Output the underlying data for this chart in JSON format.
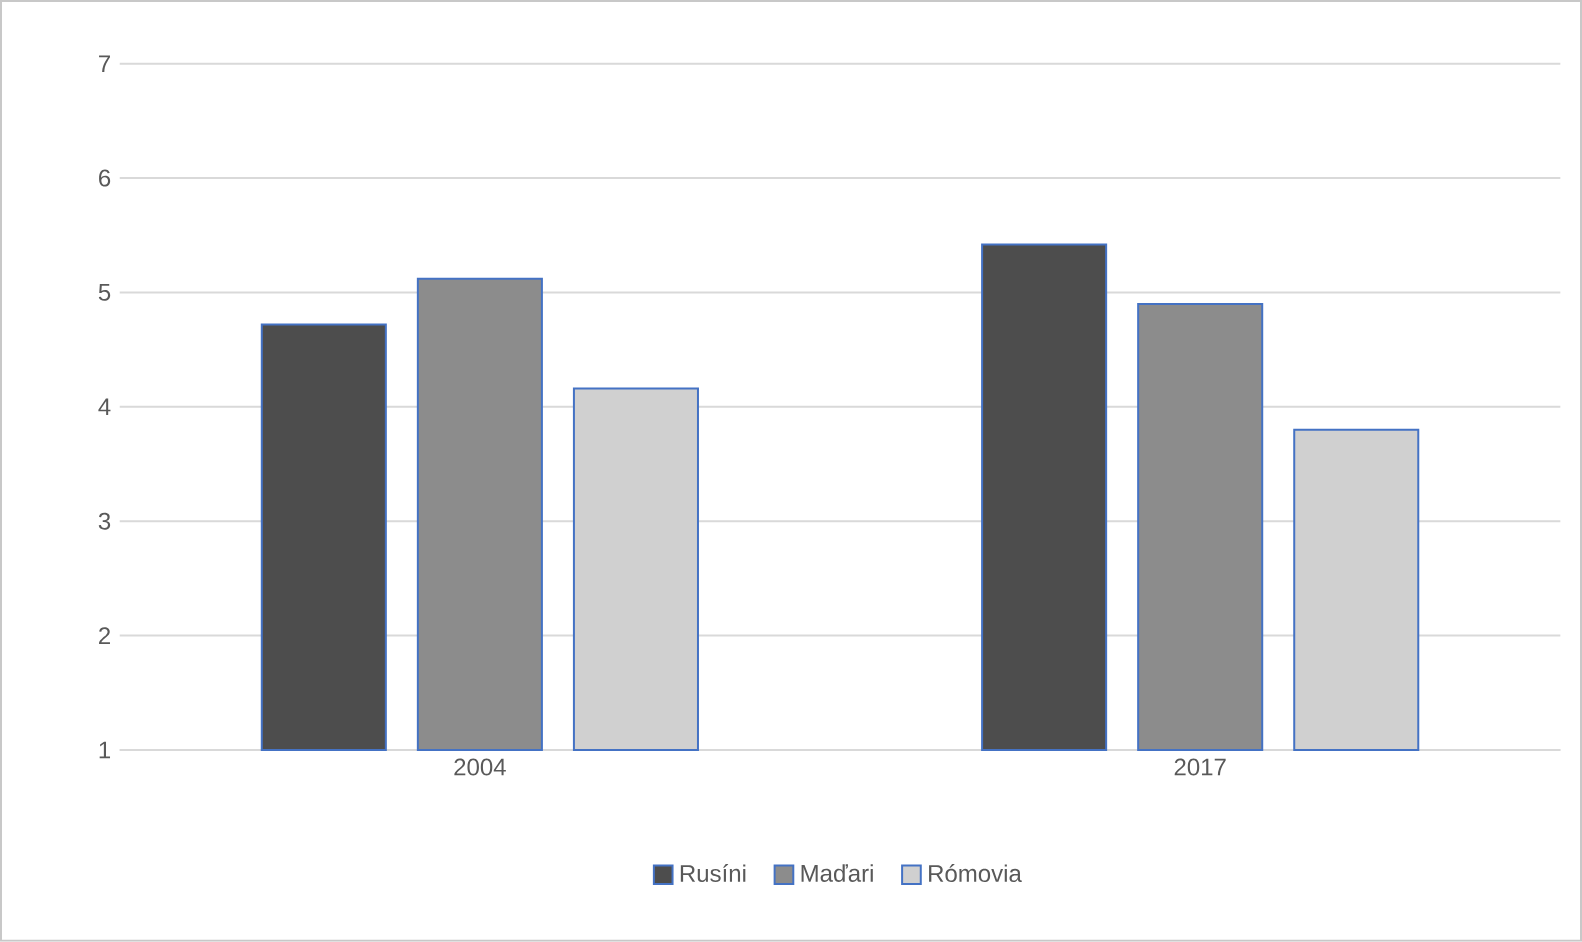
{
  "chart_data": {
    "type": "bar",
    "categories": [
      "2004",
      "2017"
    ],
    "series": [
      {
        "name": "Rusíni",
        "color": "#4d4d4d",
        "values": [
          4.72,
          5.42
        ]
      },
      {
        "name": "Maďari",
        "color": "#8c8c8c",
        "values": [
          5.12,
          4.9
        ]
      },
      {
        "name": "Rómovia",
        "color": "#d0d0d0",
        "values": [
          4.16,
          3.8
        ]
      }
    ],
    "ylim": [
      1,
      7
    ],
    "yticks": [
      1,
      2,
      3,
      4,
      5,
      6,
      7
    ],
    "grid": "y",
    "legend": "bottom"
  }
}
